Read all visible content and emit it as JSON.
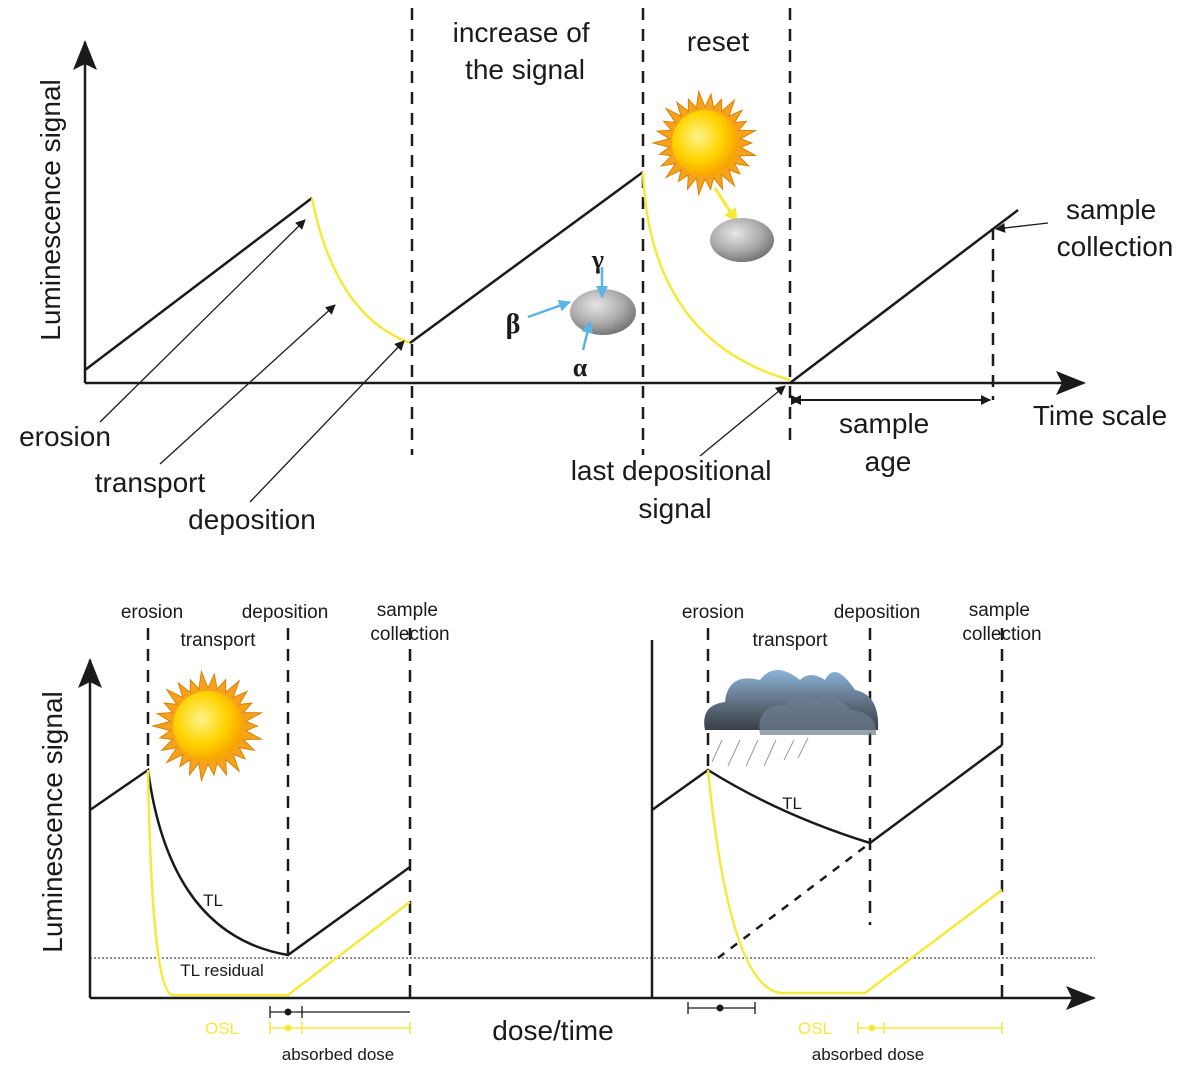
{
  "top_panel": {
    "y_axis_label": "Luminescence signal",
    "x_axis_label": "Time scale",
    "increase_of_signal": [
      "increase of",
      "the signal"
    ],
    "reset": "reset",
    "sample_collection": [
      "sample",
      "collection"
    ],
    "erosion": "erosion",
    "transport": "transport",
    "deposition": "deposition",
    "last_depositional_signal": [
      "last depositional",
      "signal"
    ],
    "sample_age": [
      "sample",
      "age"
    ],
    "radiation": {
      "beta": "β",
      "gamma": "γ",
      "alpha": "α"
    }
  },
  "bottom_left": {
    "y_axis_label": "Luminescence signal",
    "erosion": "erosion",
    "transport": "transport",
    "deposition": "deposition",
    "sample_collection": [
      "sample",
      "collection"
    ],
    "tl": "TL",
    "tl_residual": "TL residual",
    "osl": "OSL",
    "absorbed_dose": "absorbed dose"
  },
  "x_axis_label": "dose/time",
  "bottom_right": {
    "erosion": "erosion",
    "transport": "transport",
    "deposition": "deposition",
    "sample_collection": [
      "sample",
      "collection"
    ],
    "tl": "TL",
    "osl": "OSL",
    "absorbed_dose": "absorbed dose"
  }
}
